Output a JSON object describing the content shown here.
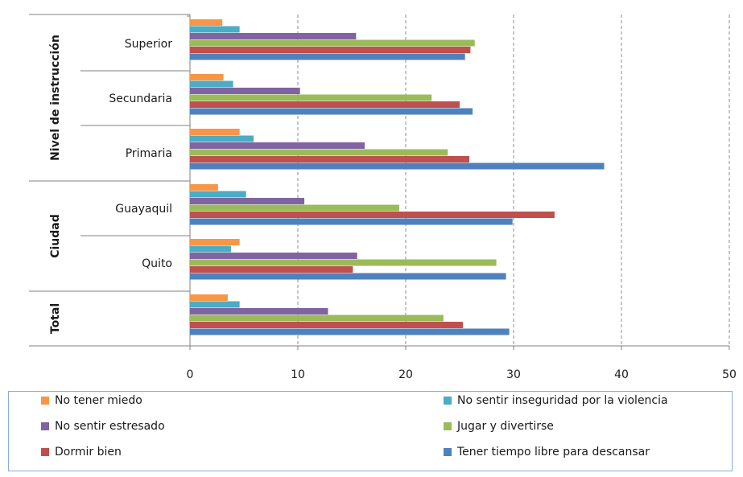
{
  "chart_data": {
    "type": "bar",
    "orientation": "horizontal",
    "title": "",
    "xlabel": "",
    "ylabel": "",
    "xlim": [
      0,
      50
    ],
    "xticks": [
      "0",
      "10",
      "20",
      "30",
      "40",
      "50"
    ],
    "grid": "vertical dashed",
    "legend_position": "bottom",
    "groups": [
      {
        "label": "Nivel de instrucción",
        "categories": [
          "Superior",
          "Secundaria",
          "Primaria"
        ]
      },
      {
        "label": "Ciudad",
        "categories": [
          "Guayaquil",
          "Quito"
        ]
      },
      {
        "label": "Total",
        "categories": [
          ""
        ]
      }
    ],
    "categories": [
      "Superior",
      "Secundaria",
      "Primaria",
      "Guayaquil",
      "Quito",
      ""
    ],
    "series": [
      {
        "name": "No tener miedo",
        "color": "#f79646",
        "values": [
          3.0,
          3.1,
          4.6,
          2.6,
          4.6,
          3.5
        ]
      },
      {
        "name": "No sentir inseguridad por la violencia",
        "color": "#4bacc6",
        "values": [
          4.6,
          4.0,
          5.9,
          5.2,
          3.8,
          4.6
        ]
      },
      {
        "name": "No sentir estresado",
        "color": "#8064a2",
        "values": [
          15.4,
          10.2,
          16.2,
          10.6,
          15.5,
          12.8
        ]
      },
      {
        "name": "Jugar y divertirse",
        "color": "#9bbb59",
        "values": [
          26.4,
          22.4,
          23.9,
          19.4,
          28.4,
          23.5
        ]
      },
      {
        "name": "Dormir bien",
        "color": "#c0504d",
        "values": [
          26.0,
          25.0,
          25.9,
          33.8,
          15.1,
          25.3
        ]
      },
      {
        "name": "Tener tiempo libre para descansar",
        "color": "#4f81bd",
        "values": [
          25.5,
          26.2,
          38.4,
          29.9,
          29.3,
          29.6
        ]
      }
    ]
  }
}
